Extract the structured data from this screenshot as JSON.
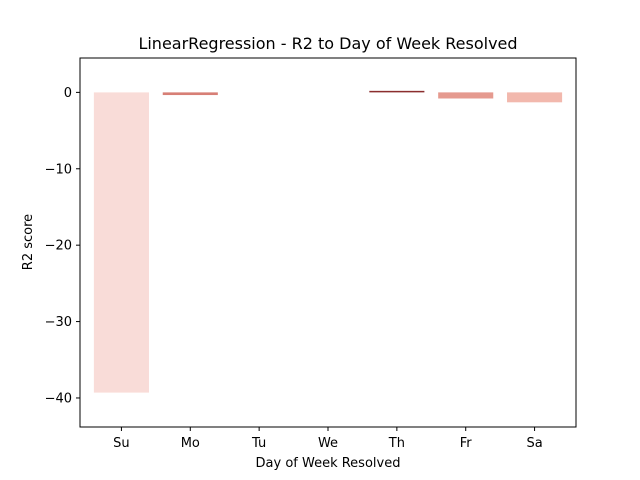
{
  "chart_data": {
    "type": "bar",
    "title": "LinearRegression - R2 to Day of Week Resolved",
    "xlabel": "Day of Week Resolved",
    "ylabel": "R2 score",
    "categories": [
      "Su",
      "Mo",
      "Tu",
      "We",
      "Th",
      "Fr",
      "Sa"
    ],
    "values": [
      -39.3,
      -0.35,
      0,
      0,
      0.2,
      -0.8,
      -1.3
    ],
    "colors": [
      "#f9dcd8",
      "#d77f76",
      "#ffffff",
      "#ffffff",
      "#8b2e2e",
      "#e59a8f",
      "#f2b8ad"
    ],
    "ylim": [
      -43.8,
      4.5
    ],
    "yticks": [
      0,
      -10,
      -20,
      -30,
      -40
    ],
    "ytick_labels": [
      "0",
      "−10",
      "−20",
      "−30",
      "−40"
    ],
    "grid": false,
    "legend": false
  }
}
